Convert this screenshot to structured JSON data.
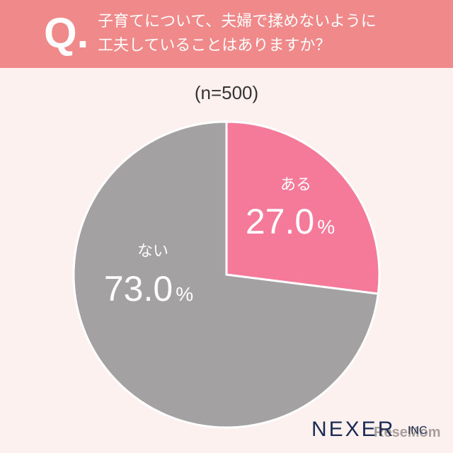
{
  "header": {
    "q_mark": "Q.",
    "question_line1": "子育てについて、夫婦で揉めないように",
    "question_line2": "工夫していることはありますか？"
  },
  "sample_size": "(n=500)",
  "chart_data": {
    "type": "pie",
    "slices": [
      {
        "label": "ある",
        "value": 27.0,
        "display": "27.0",
        "color": "#f57a9a"
      },
      {
        "label": "ない",
        "value": 73.0,
        "display": "73.0",
        "color": "#a3a1a2"
      }
    ],
    "unit": "%"
  },
  "footer": {
    "brand": "NEXER",
    "brand_suffix": "INC",
    "watermark": "ReseMom"
  },
  "colors": {
    "header_bg": "#f08a8a",
    "page_bg": "#fdf1ef"
  }
}
